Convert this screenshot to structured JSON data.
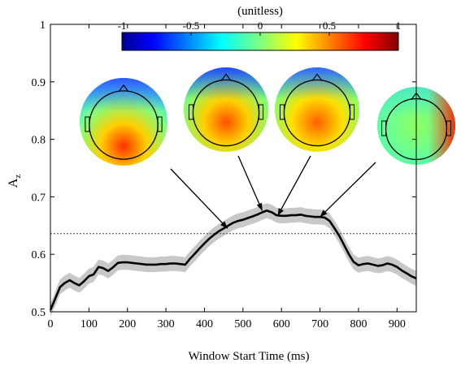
{
  "chart_data": {
    "type": "line",
    "xlabel": "Window Start Time (ms)",
    "ylabel": "A",
    "ylabel_sub": "z",
    "xlim": [
      0,
      950
    ],
    "ylim": [
      0.5,
      1.0
    ],
    "xticks": [
      0,
      100,
      200,
      300,
      400,
      500,
      600,
      700,
      800,
      900
    ],
    "yticks": [
      0.5,
      0.6,
      0.7,
      0.8,
      0.9,
      1
    ],
    "xtick_labels": [
      "0",
      "100",
      "200",
      "300",
      "400",
      "500",
      "600",
      "700",
      "800",
      "900"
    ],
    "ytick_labels": [
      "0.5",
      "0.6",
      "0.7",
      "0.8",
      "0.9",
      "1"
    ],
    "grid": false,
    "threshold": 0.636,
    "series": [
      {
        "style": "solid black line with gray confidence band",
        "x": [
          0,
          12,
          25,
          37,
          50,
          62,
          75,
          87,
          100,
          112,
          125,
          137,
          150,
          162,
          175,
          187,
          200,
          212,
          225,
          237,
          250,
          262,
          275,
          287,
          300,
          312,
          325,
          337,
          350,
          362,
          375,
          387,
          400,
          412,
          425,
          437,
          450,
          462,
          475,
          487,
          500,
          512,
          525,
          537,
          550,
          562,
          575,
          587,
          600,
          612,
          625,
          637,
          650,
          662,
          675,
          687,
          700,
          712,
          725,
          737,
          750,
          762,
          775,
          787,
          800,
          812,
          825,
          837,
          850,
          862,
          875,
          887,
          900,
          912,
          925,
          937,
          950
        ],
        "y": [
          0.503,
          0.522,
          0.543,
          0.55,
          0.555,
          0.55,
          0.546,
          0.553,
          0.562,
          0.565,
          0.578,
          0.576,
          0.571,
          0.577,
          0.585,
          0.586,
          0.586,
          0.585,
          0.584,
          0.583,
          0.582,
          0.582,
          0.582,
          0.583,
          0.583,
          0.584,
          0.584,
          0.583,
          0.582,
          0.592,
          0.601,
          0.61,
          0.619,
          0.627,
          0.634,
          0.64,
          0.645,
          0.65,
          0.655,
          0.658,
          0.66,
          0.663,
          0.666,
          0.669,
          0.673,
          0.676,
          0.673,
          0.668,
          0.667,
          0.667,
          0.668,
          0.668,
          0.669,
          0.667,
          0.666,
          0.665,
          0.665,
          0.664,
          0.658,
          0.646,
          0.632,
          0.617,
          0.6,
          0.587,
          0.581,
          0.583,
          0.584,
          0.582,
          0.58,
          0.581,
          0.584,
          0.582,
          0.578,
          0.572,
          0.567,
          0.562,
          0.558
        ],
        "upper": [
          0.514,
          0.535,
          0.556,
          0.563,
          0.568,
          0.563,
          0.559,
          0.566,
          0.575,
          0.578,
          0.591,
          0.589,
          0.584,
          0.59,
          0.598,
          0.599,
          0.599,
          0.598,
          0.597,
          0.596,
          0.595,
          0.595,
          0.595,
          0.596,
          0.596,
          0.597,
          0.597,
          0.596,
          0.595,
          0.605,
          0.614,
          0.623,
          0.632,
          0.64,
          0.647,
          0.653,
          0.658,
          0.663,
          0.668,
          0.671,
          0.673,
          0.676,
          0.679,
          0.682,
          0.686,
          0.689,
          0.686,
          0.681,
          0.68,
          0.68,
          0.681,
          0.681,
          0.682,
          0.68,
          0.679,
          0.678,
          0.678,
          0.677,
          0.671,
          0.659,
          0.645,
          0.63,
          0.613,
          0.6,
          0.594,
          0.596,
          0.597,
          0.595,
          0.593,
          0.594,
          0.597,
          0.595,
          0.591,
          0.585,
          0.58,
          0.575,
          0.571
        ],
        "lower": [
          0.492,
          0.509,
          0.53,
          0.537,
          0.542,
          0.537,
          0.533,
          0.54,
          0.549,
          0.552,
          0.565,
          0.563,
          0.558,
          0.564,
          0.572,
          0.573,
          0.573,
          0.572,
          0.571,
          0.57,
          0.569,
          0.569,
          0.569,
          0.57,
          0.57,
          0.571,
          0.571,
          0.57,
          0.569,
          0.579,
          0.588,
          0.597,
          0.606,
          0.614,
          0.621,
          0.627,
          0.632,
          0.637,
          0.642,
          0.645,
          0.647,
          0.65,
          0.653,
          0.656,
          0.66,
          0.663,
          0.66,
          0.655,
          0.654,
          0.654,
          0.655,
          0.655,
          0.656,
          0.654,
          0.653,
          0.652,
          0.652,
          0.651,
          0.645,
          0.633,
          0.619,
          0.604,
          0.587,
          0.574,
          0.568,
          0.57,
          0.571,
          0.569,
          0.567,
          0.568,
          0.571,
          0.569,
          0.565,
          0.559,
          0.554,
          0.549,
          0.545
        ]
      }
    ],
    "colorbar": {
      "label": "(unitless)",
      "range": [
        -1,
        1
      ],
      "ticks": [
        -1,
        -0.5,
        0,
        0.5,
        1
      ],
      "tick_labels": [
        "-1",
        "-0.5",
        "0",
        "0.5",
        "1"
      ],
      "colormap": "jet"
    },
    "topoplots": [
      {
        "x": 460,
        "y": 0.645,
        "pattern": "posterior-positive, frontal-negative"
      },
      {
        "x": 550,
        "y": 0.676,
        "pattern": "central-positive, frontal-negative"
      },
      {
        "x": 590,
        "y": 0.667,
        "pattern": "central-positive, frontal-negative"
      },
      {
        "x": 700,
        "y": 0.665,
        "pattern": "right-temporal-positive, weak elsewhere"
      }
    ]
  }
}
